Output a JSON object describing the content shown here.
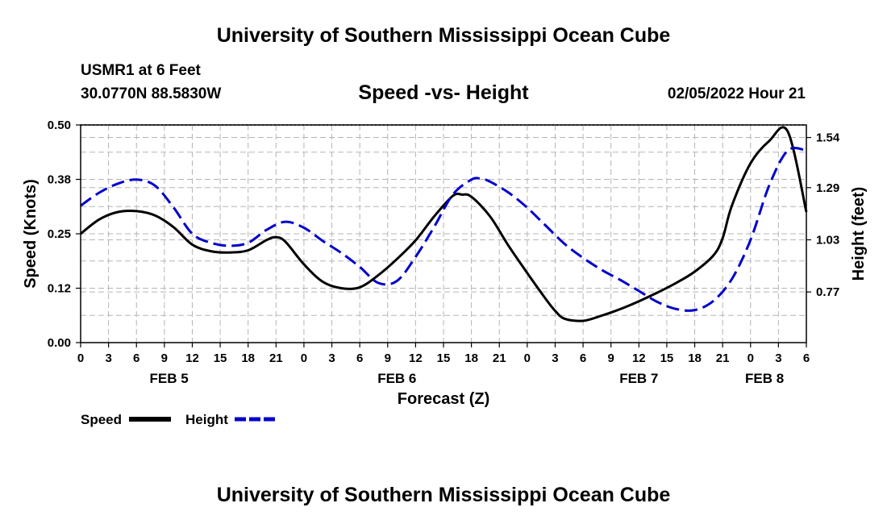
{
  "header": {
    "title": "University of Southern Mississippi Ocean Cube",
    "station": "USMR1 at 6 Feet",
    "coordinates": "30.0770N  88.5830W",
    "subtitle": "Speed -vs- Height",
    "datestamp": "02/05/2022 Hour 21"
  },
  "footer": {
    "title": "University of Southern Mississippi Ocean Cube"
  },
  "chart_data": {
    "type": "line",
    "title": "Speed -vs- Height",
    "xlabel": "Forecast (Z)",
    "ylabel": "Speed (Knots)",
    "y2label": "Height (feet)",
    "x_range": [
      0,
      78
    ],
    "ylim": [
      0,
      0.5
    ],
    "y2lim": [
      0.5175,
      1.6025
    ],
    "x_ticks": [
      0,
      3,
      6,
      9,
      12,
      15,
      18,
      21,
      24,
      27,
      30,
      33,
      36,
      39,
      42,
      45,
      48,
      51,
      54,
      57,
      60,
      63,
      66,
      69,
      72,
      75,
      78
    ],
    "x_tick_labels": [
      "0",
      "3",
      "6",
      "9",
      "12",
      "15",
      "18",
      "21",
      "0",
      "3",
      "6",
      "9",
      "12",
      "15",
      "18",
      "21",
      "0",
      "3",
      "6",
      "9",
      "12",
      "15",
      "18",
      "21",
      "0",
      "3",
      "6"
    ],
    "y_ticks": [
      0.0,
      0.125,
      0.25,
      0.375,
      0.5
    ],
    "y_tick_labels": [
      "0.00",
      "0.12",
      "0.25",
      "0.38",
      "0.50"
    ],
    "y2_ticks": [
      0.77,
      1.03,
      1.29,
      1.54
    ],
    "y2_tick_labels": [
      "0.77",
      "1.03",
      "1.29",
      "1.54"
    ],
    "date_labels": [
      {
        "x": 9.5,
        "label": "FEB 5"
      },
      {
        "x": 34.0,
        "label": "FEB 6"
      },
      {
        "x": 60.0,
        "label": "FEB 7"
      },
      {
        "x": 73.5,
        "label": "FEB 8"
      }
    ],
    "grid": true,
    "legend_position": "bottom-left",
    "series": [
      {
        "name": "Speed",
        "axis": "left",
        "style": "solid",
        "color": "#000000",
        "x": [
          0,
          2,
          4,
          6,
          8,
          10,
          12,
          14,
          16,
          18,
          20,
          21,
          22,
          24,
          26,
          28,
          30,
          32,
          34,
          36,
          38,
          40,
          41,
          42,
          44,
          46,
          48,
          50,
          51,
          52,
          54,
          56,
          58,
          60,
          62,
          64,
          66,
          68,
          69,
          70,
          72,
          74,
          76,
          78
        ],
        "y": [
          0.25,
          0.283,
          0.3,
          0.302,
          0.292,
          0.265,
          0.225,
          0.21,
          0.207,
          0.212,
          0.236,
          0.242,
          0.232,
          0.18,
          0.14,
          0.125,
          0.127,
          0.155,
          0.192,
          0.235,
          0.29,
          0.337,
          0.34,
          0.335,
          0.29,
          0.222,
          0.16,
          0.1,
          0.073,
          0.055,
          0.05,
          0.062,
          0.077,
          0.095,
          0.115,
          0.137,
          0.163,
          0.2,
          0.24,
          0.315,
          0.412,
          0.463,
          0.485,
          0.3
        ]
      },
      {
        "name": "Height",
        "axis": "right",
        "style": "dashed",
        "color": "#0000cc",
        "x": [
          0,
          2,
          4,
          6,
          8,
          10,
          12,
          14,
          16,
          18,
          20,
          22,
          24,
          26,
          28,
          30,
          32,
          34,
          36,
          38,
          40,
          42,
          43,
          44,
          46,
          48,
          50,
          52,
          54,
          56,
          58,
          60,
          62,
          64,
          66,
          68,
          70,
          72,
          74,
          76,
          78
        ],
        "y": [
          1.2,
          1.265,
          1.31,
          1.33,
          1.3,
          1.19,
          1.06,
          1.015,
          1.0,
          1.015,
          1.08,
          1.12,
          1.09,
          1.025,
          0.965,
          0.895,
          0.815,
          0.825,
          0.945,
          1.095,
          1.255,
          1.33,
          1.335,
          1.32,
          1.265,
          1.19,
          1.1,
          1.01,
          0.94,
          0.88,
          0.83,
          0.775,
          0.72,
          0.685,
          0.68,
          0.725,
          0.835,
          1.03,
          1.3,
          1.475,
          1.475
        ]
      }
    ]
  }
}
